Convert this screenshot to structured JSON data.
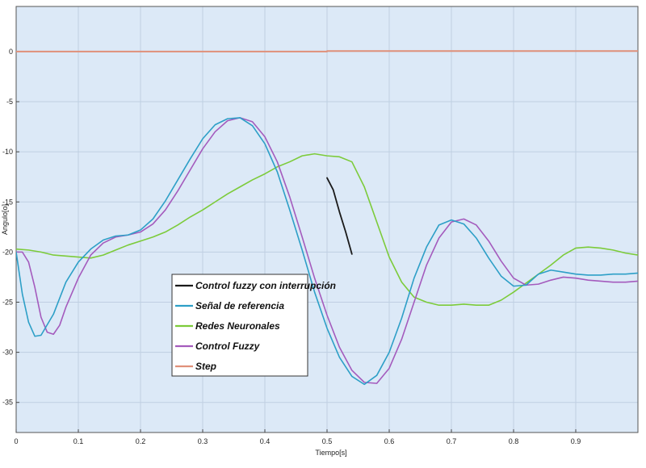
{
  "chart_data": {
    "type": "line",
    "title": "",
    "xlabel": "Tiempo[s]",
    "ylabel": "Angulo[o]",
    "xlim": [
      0,
      1
    ],
    "ylim": [
      -38,
      4.5
    ],
    "grid": true,
    "background": "#dce9f7",
    "legend_position": "lower-center-left",
    "x_ticks": [
      0,
      0.1,
      0.2,
      0.3,
      0.4,
      0.5,
      0.6,
      0.7,
      0.8,
      0.9
    ],
    "x_tick_labels": [
      "0",
      "0.1",
      "0.2",
      "0.3",
      "0.4",
      "0.5",
      "0.6",
      "0.7",
      "0.8",
      "0.9"
    ],
    "y_ticks": [
      0,
      -5,
      -10,
      -15,
      -20,
      -25,
      -30,
      -35
    ],
    "y_tick_labels": [
      "0",
      "-5",
      "-10",
      "-15",
      "-20",
      "-25",
      "-30",
      "-35"
    ],
    "series": [
      {
        "name": "Control fuzzy con interrupción",
        "color": "#1a1a1a",
        "width": 1.8,
        "x": [
          0.5,
          0.51,
          0.52,
          0.53,
          0.54
        ],
        "y": [
          -12.6,
          -13.8,
          -16.0,
          -18.0,
          -20.2
        ]
      },
      {
        "name": "Señal de referencia",
        "color": "#2d9fc7",
        "width": 1.6,
        "x": [
          0.0,
          0.01,
          0.02,
          0.03,
          0.04,
          0.06,
          0.08,
          0.1,
          0.12,
          0.14,
          0.16,
          0.18,
          0.2,
          0.22,
          0.24,
          0.26,
          0.28,
          0.3,
          0.32,
          0.34,
          0.36,
          0.38,
          0.4,
          0.42,
          0.44,
          0.46,
          0.48,
          0.5,
          0.52,
          0.54,
          0.56,
          0.58,
          0.6,
          0.62,
          0.64,
          0.66,
          0.68,
          0.7,
          0.72,
          0.74,
          0.76,
          0.78,
          0.8,
          0.82,
          0.84,
          0.86,
          0.88,
          0.9,
          0.92,
          0.94,
          0.96,
          0.98,
          1.0
        ],
        "y": [
          -20.0,
          -24.2,
          -27.0,
          -28.4,
          -28.3,
          -26.2,
          -23.0,
          -21.0,
          -19.7,
          -18.8,
          -18.4,
          -18.3,
          -17.8,
          -16.7,
          -14.9,
          -12.8,
          -10.7,
          -8.7,
          -7.3,
          -6.7,
          -6.6,
          -7.4,
          -9.2,
          -12.0,
          -15.8,
          -19.8,
          -24.0,
          -27.6,
          -30.5,
          -32.4,
          -33.2,
          -32.3,
          -30.0,
          -26.6,
          -22.6,
          -19.5,
          -17.3,
          -16.8,
          -17.2,
          -18.6,
          -20.6,
          -22.4,
          -23.4,
          -23.3,
          -22.2,
          -21.8,
          -22.0,
          -22.2,
          -22.3,
          -22.3,
          -22.2,
          -22.2,
          -22.1
        ]
      },
      {
        "name": "Redes Neuronales",
        "color": "#7ccb3a",
        "width": 1.6,
        "x": [
          0.0,
          0.02,
          0.04,
          0.06,
          0.08,
          0.1,
          0.12,
          0.14,
          0.16,
          0.18,
          0.2,
          0.22,
          0.24,
          0.26,
          0.28,
          0.3,
          0.32,
          0.34,
          0.36,
          0.38,
          0.4,
          0.42,
          0.44,
          0.46,
          0.48,
          0.5,
          0.52,
          0.54,
          0.56,
          0.58,
          0.6,
          0.62,
          0.64,
          0.66,
          0.68,
          0.7,
          0.72,
          0.74,
          0.76,
          0.78,
          0.8,
          0.82,
          0.84,
          0.86,
          0.88,
          0.9,
          0.92,
          0.94,
          0.96,
          0.98,
          1.0
        ],
        "y": [
          -19.7,
          -19.8,
          -20.0,
          -20.3,
          -20.4,
          -20.5,
          -20.6,
          -20.3,
          -19.8,
          -19.3,
          -18.9,
          -18.5,
          -18.0,
          -17.3,
          -16.5,
          -15.8,
          -15.0,
          -14.2,
          -13.5,
          -12.8,
          -12.2,
          -11.5,
          -11.0,
          -10.4,
          -10.2,
          -10.4,
          -10.5,
          -11.0,
          -13.5,
          -17.0,
          -20.5,
          -23.0,
          -24.5,
          -25.0,
          -25.3,
          -25.3,
          -25.2,
          -25.3,
          -25.3,
          -24.8,
          -24.0,
          -23.1,
          -22.2,
          -21.3,
          -20.3,
          -19.6,
          -19.5,
          -19.6,
          -19.8,
          -20.1,
          -20.3
        ]
      },
      {
        "name": "Control Fuzzy",
        "color": "#a45bbd",
        "width": 1.6,
        "x": [
          0.0,
          0.01,
          0.02,
          0.03,
          0.04,
          0.05,
          0.06,
          0.07,
          0.08,
          0.1,
          0.12,
          0.14,
          0.16,
          0.18,
          0.2,
          0.22,
          0.24,
          0.26,
          0.28,
          0.3,
          0.32,
          0.34,
          0.36,
          0.38,
          0.4,
          0.42,
          0.44,
          0.46,
          0.48,
          0.5,
          0.52,
          0.54,
          0.56,
          0.58,
          0.6,
          0.62,
          0.64,
          0.66,
          0.68,
          0.7,
          0.72,
          0.74,
          0.76,
          0.78,
          0.8,
          0.82,
          0.84,
          0.86,
          0.88,
          0.9,
          0.92,
          0.94,
          0.96,
          0.98,
          1.0
        ],
        "y": [
          -20.0,
          -20.0,
          -21.0,
          -23.5,
          -26.5,
          -28.0,
          -28.2,
          -27.3,
          -25.5,
          -22.6,
          -20.3,
          -19.1,
          -18.5,
          -18.3,
          -18.0,
          -17.2,
          -15.8,
          -13.9,
          -11.8,
          -9.7,
          -8.0,
          -6.9,
          -6.6,
          -7.0,
          -8.5,
          -11.0,
          -14.5,
          -18.5,
          -22.6,
          -26.3,
          -29.5,
          -31.8,
          -33.0,
          -33.1,
          -31.6,
          -28.7,
          -25.0,
          -21.3,
          -18.6,
          -17.0,
          -16.7,
          -17.3,
          -18.9,
          -20.9,
          -22.6,
          -23.3,
          -23.2,
          -22.8,
          -22.5,
          -22.6,
          -22.8,
          -22.9,
          -23.0,
          -23.0,
          -22.9
        ]
      },
      {
        "name": "Step",
        "color": "#e0907a",
        "width": 2,
        "x": [
          0.0,
          0.5,
          0.5,
          1.0
        ],
        "y": [
          0.0,
          0.0,
          0.05,
          0.05
        ]
      }
    ]
  }
}
